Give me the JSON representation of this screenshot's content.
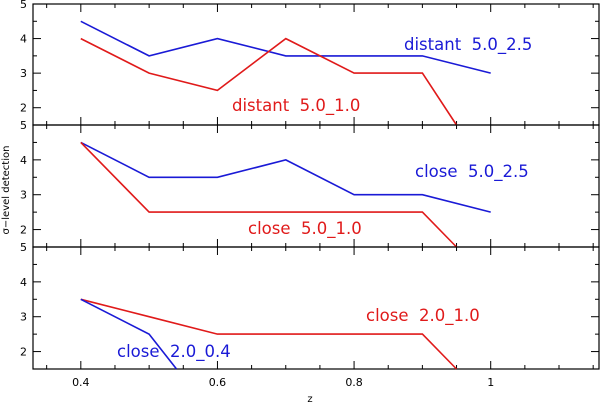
{
  "chart_data": {
    "type": "line",
    "xlabel": "z",
    "ylabel": "σ−level detection",
    "xlim": [
      0.33,
      1.16
    ],
    "x_ticks": [
      0.4,
      0.6,
      0.8,
      1
    ],
    "x_tick_labels": [
      "0.4",
      "0.6",
      "0.8",
      "1"
    ],
    "colors": {
      "blue": "#1a1ad6",
      "red": "#e01a1a"
    },
    "panels": [
      {
        "ylim": [
          1.5,
          5
        ],
        "y_ticks": [
          2,
          3,
          4,
          5
        ],
        "series": [
          {
            "name": "distant  5.0_2.5",
            "color": "blue",
            "x": [
              0.4,
              0.5,
              0.6,
              0.7,
              0.8,
              0.9,
              1.0
            ],
            "y": [
              4.5,
              3.5,
              4.0,
              3.5,
              3.5,
              3.5,
              3.0
            ]
          },
          {
            "name": "distant  5.0_1.0",
            "color": "red",
            "x": [
              0.4,
              0.5,
              0.6,
              0.7,
              0.8,
              0.9,
              0.95
            ],
            "y": [
              4.0,
              3.0,
              2.5,
              4.0,
              3.0,
              3.0,
              1.5
            ]
          }
        ]
      },
      {
        "ylim": [
          1.5,
          5
        ],
        "y_ticks": [
          2,
          3,
          4,
          5
        ],
        "series": [
          {
            "name": "close  5.0_2.5",
            "color": "blue",
            "x": [
              0.4,
              0.5,
              0.6,
              0.7,
              0.8,
              0.9,
              1.0
            ],
            "y": [
              4.5,
              3.5,
              3.5,
              4.0,
              3.0,
              3.0,
              2.5
            ]
          },
          {
            "name": "close  5.0_1.0",
            "color": "red",
            "x": [
              0.4,
              0.5,
              0.6,
              0.7,
              0.8,
              0.9,
              0.95
            ],
            "y": [
              4.5,
              2.5,
              2.5,
              2.5,
              2.5,
              2.5,
              1.5
            ]
          }
        ]
      },
      {
        "ylim": [
          1.5,
          5
        ],
        "y_ticks": [
          2,
          3,
          4,
          5
        ],
        "series": [
          {
            "name": "close  2.0_1.0",
            "color": "red",
            "x": [
              0.4,
              0.5,
              0.6,
              0.7,
              0.8,
              0.9,
              0.95
            ],
            "y": [
              3.5,
              3.0,
              2.5,
              2.5,
              2.5,
              2.5,
              1.5
            ]
          },
          {
            "name": "close  2.0_0.4",
            "color": "blue",
            "x": [
              0.4,
              0.5,
              0.54
            ],
            "y": [
              3.5,
              2.5,
              1.5
            ]
          }
        ]
      }
    ]
  }
}
